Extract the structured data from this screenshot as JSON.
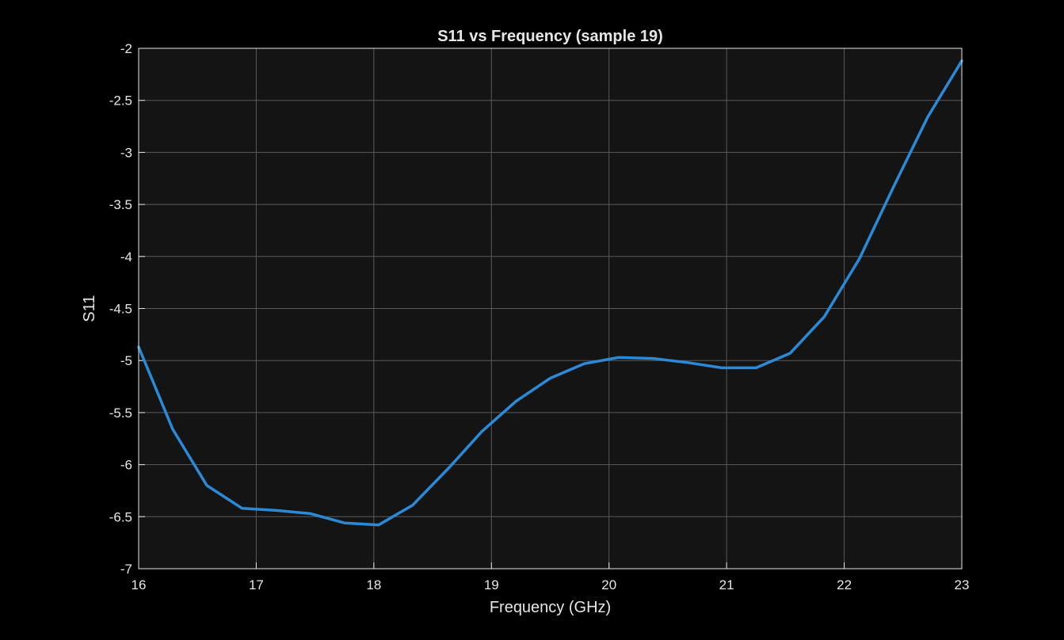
{
  "chart_data": {
    "type": "line",
    "title": "S11 vs Frequency (sample 19)",
    "xlabel": "Frequency (GHz)",
    "ylabel": "S11",
    "xlim": [
      16,
      23
    ],
    "ylim": [
      -7,
      -2
    ],
    "xticks": [
      16,
      17,
      18,
      19,
      20,
      21,
      22,
      23
    ],
    "yticks": [
      -7,
      -6.5,
      -6,
      -5.5,
      -5,
      -4.5,
      -4,
      -3.5,
      -3,
      -2.5,
      -2
    ],
    "xtick_labels": [
      "16",
      "17",
      "18",
      "19",
      "20",
      "21",
      "22",
      "23"
    ],
    "ytick_labels": [
      "-7",
      "-6.5",
      "-6",
      "-5.5",
      "-5",
      "-4.5",
      "-4",
      "-3.5",
      "-3",
      "-2.5",
      "-2"
    ],
    "grid": true,
    "series": [
      {
        "x": [
          16.0,
          16.29,
          16.58,
          16.88,
          17.17,
          17.46,
          17.75,
          18.04,
          18.33,
          18.63,
          18.92,
          19.21,
          19.5,
          19.79,
          20.08,
          20.38,
          20.67,
          20.96,
          21.25,
          21.54,
          21.83,
          22.13,
          22.42,
          22.71,
          23.0
        ],
        "values": [
          -4.87,
          -5.66,
          -6.2,
          -6.42,
          -6.44,
          -6.47,
          -6.56,
          -6.58,
          -6.39,
          -6.04,
          -5.68,
          -5.39,
          -5.17,
          -5.03,
          -4.97,
          -4.98,
          -5.02,
          -5.07,
          -5.07,
          -4.93,
          -4.58,
          -4.02,
          -3.33,
          -2.66,
          -2.12
        ],
        "color": "#2b8ad8"
      }
    ]
  },
  "colors": {
    "background": "#000000",
    "plot_area": "#141414",
    "text": "#e6e6e6",
    "grid": "#5a5a5a",
    "line": "#2b8ad8"
  }
}
